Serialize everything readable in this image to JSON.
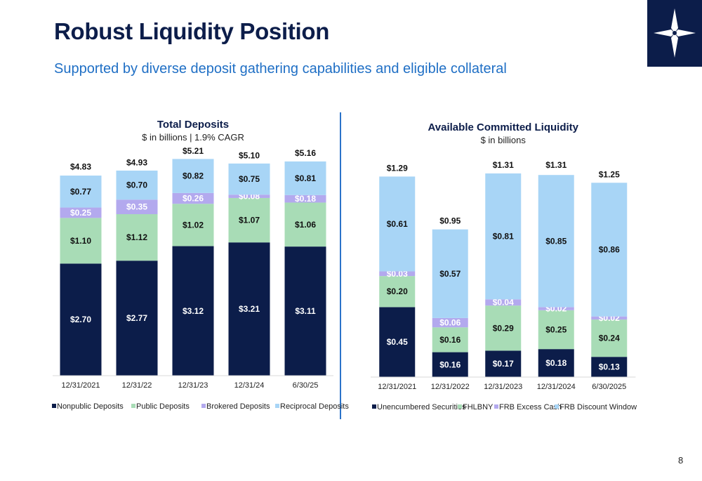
{
  "header": {
    "title": "Robust Liquidity Position",
    "subtitle": "Supported by diverse deposit gathering capabilities and eligible collateral"
  },
  "page_number": "8",
  "colors": {
    "title": "#0c1d4a",
    "subtitle": "#1f6fc5",
    "divider": "#2b73c9",
    "navy": "#0c1d4a",
    "green": "#a8dcb6",
    "purple": "#b3a9ee",
    "light_blue": "#a8d5f6"
  },
  "logo": {
    "icon": "compass-star-icon"
  },
  "chart_data": [
    {
      "id": "deposits",
      "type": "bar",
      "stacked": true,
      "title": "Total Deposits",
      "subtitle": "$ in billions | 1.9% CAGR",
      "categories": [
        "12/31/2021",
        "12/31/22",
        "12/31/23",
        "12/31/24",
        "6/30/25"
      ],
      "series": [
        {
          "name": "Nonpublic Deposits",
          "color": "#0c1d4a",
          "label_color": "#ffffff",
          "values": [
            2.7,
            2.77,
            3.12,
            3.21,
            3.11
          ],
          "labels": [
            "$2.70",
            "$2.77",
            "$3.12",
            "$3.21",
            "$3.11"
          ]
        },
        {
          "name": "Public Deposits",
          "color": "#a8dcb6",
          "label_color": "#111111",
          "values": [
            1.1,
            1.12,
            1.02,
            1.07,
            1.06
          ],
          "labels": [
            "$1.10",
            "$1.12",
            "$1.02",
            "$1.07",
            "$1.06"
          ]
        },
        {
          "name": "Brokered Deposits",
          "color": "#b3a9ee",
          "label_color": "#ffffff",
          "values": [
            0.25,
            0.35,
            0.26,
            0.08,
            0.18
          ],
          "labels": [
            "$0.25",
            "$0.35",
            "$0.26",
            "$0.08",
            "$0.18"
          ]
        },
        {
          "name": "Reciprocal Deposits",
          "color": "#a8d5f6",
          "label_color": "#111111",
          "values": [
            0.77,
            0.7,
            0.82,
            0.75,
            0.81
          ],
          "labels": [
            "$0.77",
            "$0.70",
            "$0.82",
            "$0.75",
            "$0.81"
          ]
        }
      ],
      "totals": [
        4.83,
        4.93,
        5.21,
        5.1,
        5.16
      ],
      "total_labels": [
        "$4.83",
        "$4.93",
        "$5.21",
        "$5.10",
        "$5.16"
      ],
      "ylim": [
        0,
        5.7
      ],
      "legend": "bottom",
      "grid": false
    },
    {
      "id": "liquidity",
      "type": "bar",
      "stacked": true,
      "title": "Available Committed Liquidity",
      "subtitle": "$ in billions",
      "categories": [
        "12/31/2021",
        "12/31/2022",
        "12/31/2023",
        "12/31/2024",
        "6/30/2025"
      ],
      "series": [
        {
          "name": "Unencumbered Securities",
          "color": "#0c1d4a",
          "label_color": "#ffffff",
          "values": [
            0.45,
            0.16,
            0.17,
            0.18,
            0.13
          ],
          "labels": [
            "$0.45",
            "$0.16",
            "$0.17",
            "$0.18",
            "$0.13"
          ]
        },
        {
          "name": "FHLBNY",
          "color": "#a8dcb6",
          "label_color": "#111111",
          "values": [
            0.2,
            0.16,
            0.29,
            0.25,
            0.24
          ],
          "labels": [
            "$0.20",
            "$0.16",
            "$0.29",
            "$0.25",
            "$0.24"
          ]
        },
        {
          "name": "FRB Excess Cash",
          "color": "#b3a9ee",
          "label_color": "#ffffff",
          "values": [
            0.03,
            0.06,
            0.04,
            0.02,
            0.02
          ],
          "labels": [
            "$0.03",
            "$0.06",
            "$0.04",
            "$0.02",
            "$0.02"
          ]
        },
        {
          "name": "FRB Discount Window",
          "color": "#a8d5f6",
          "label_color": "#111111",
          "values": [
            0.61,
            0.57,
            0.81,
            0.85,
            0.86
          ],
          "labels": [
            "$0.61",
            "$0.57",
            "$0.81",
            "$0.85",
            "$0.86"
          ]
        }
      ],
      "totals": [
        1.29,
        0.95,
        1.31,
        1.31,
        1.25
      ],
      "total_labels": [
        "$1.29",
        "$0.95",
        "$1.31",
        "$1.31",
        "$1.25"
      ],
      "ylim": [
        0,
        1.45
      ],
      "legend": "bottom",
      "grid": false
    }
  ]
}
